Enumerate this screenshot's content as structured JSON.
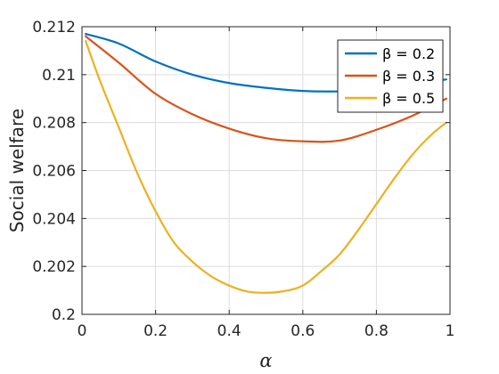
{
  "chart_data": {
    "type": "line",
    "title": "",
    "xlabel": "α",
    "ylabel": "Social welfare",
    "xlim": [
      0,
      1
    ],
    "ylim": [
      0.2,
      0.212
    ],
    "xticks": [
      0,
      0.2,
      0.4,
      0.6,
      0.8,
      1
    ],
    "xtick_labels": [
      "0",
      "0.2",
      "0.4",
      "0.6",
      "0.8",
      "1"
    ],
    "yticks": [
      0.2,
      0.202,
      0.204,
      0.206,
      0.208,
      0.21,
      0.212
    ],
    "ytick_labels": [
      "0.2",
      "0.202",
      "0.204",
      "0.206",
      "0.208",
      "0.21",
      "0.212"
    ],
    "grid": true,
    "legend_position": "top-right",
    "series": [
      {
        "name": "β = 0.2",
        "color": "#0072BD",
        "x": [
          0.01,
          0.1,
          0.2,
          0.3,
          0.4,
          0.5,
          0.6,
          0.7,
          0.8,
          0.9,
          0.99
        ],
        "y": [
          0.2117,
          0.2113,
          0.21055,
          0.21,
          0.20965,
          0.20945,
          0.20932,
          0.2093,
          0.20935,
          0.2096,
          0.2098
        ]
      },
      {
        "name": "β = 0.3",
        "color": "#D95319",
        "x": [
          0.01,
          0.1,
          0.2,
          0.3,
          0.4,
          0.5,
          0.6,
          0.7,
          0.8,
          0.9,
          0.99
        ],
        "y": [
          0.2116,
          0.2105,
          0.2092,
          0.20835,
          0.20775,
          0.20735,
          0.20722,
          0.20725,
          0.2077,
          0.2083,
          0.209
        ]
      },
      {
        "name": "β = 0.5",
        "color": "#EDB120",
        "x": [
          0.01,
          0.05,
          0.1,
          0.15,
          0.2,
          0.25,
          0.3,
          0.35,
          0.4,
          0.45,
          0.5,
          0.55,
          0.6,
          0.65,
          0.7,
          0.75,
          0.8,
          0.85,
          0.9,
          0.95,
          0.99
        ],
        "y": [
          0.2114,
          0.2097,
          0.2078,
          0.2059,
          0.2043,
          0.203,
          0.2022,
          0.2016,
          0.2012,
          0.20095,
          0.2009,
          0.20097,
          0.2012,
          0.2018,
          0.2025,
          0.2035,
          0.2046,
          0.2057,
          0.2067,
          0.2075,
          0.208
        ]
      }
    ]
  }
}
